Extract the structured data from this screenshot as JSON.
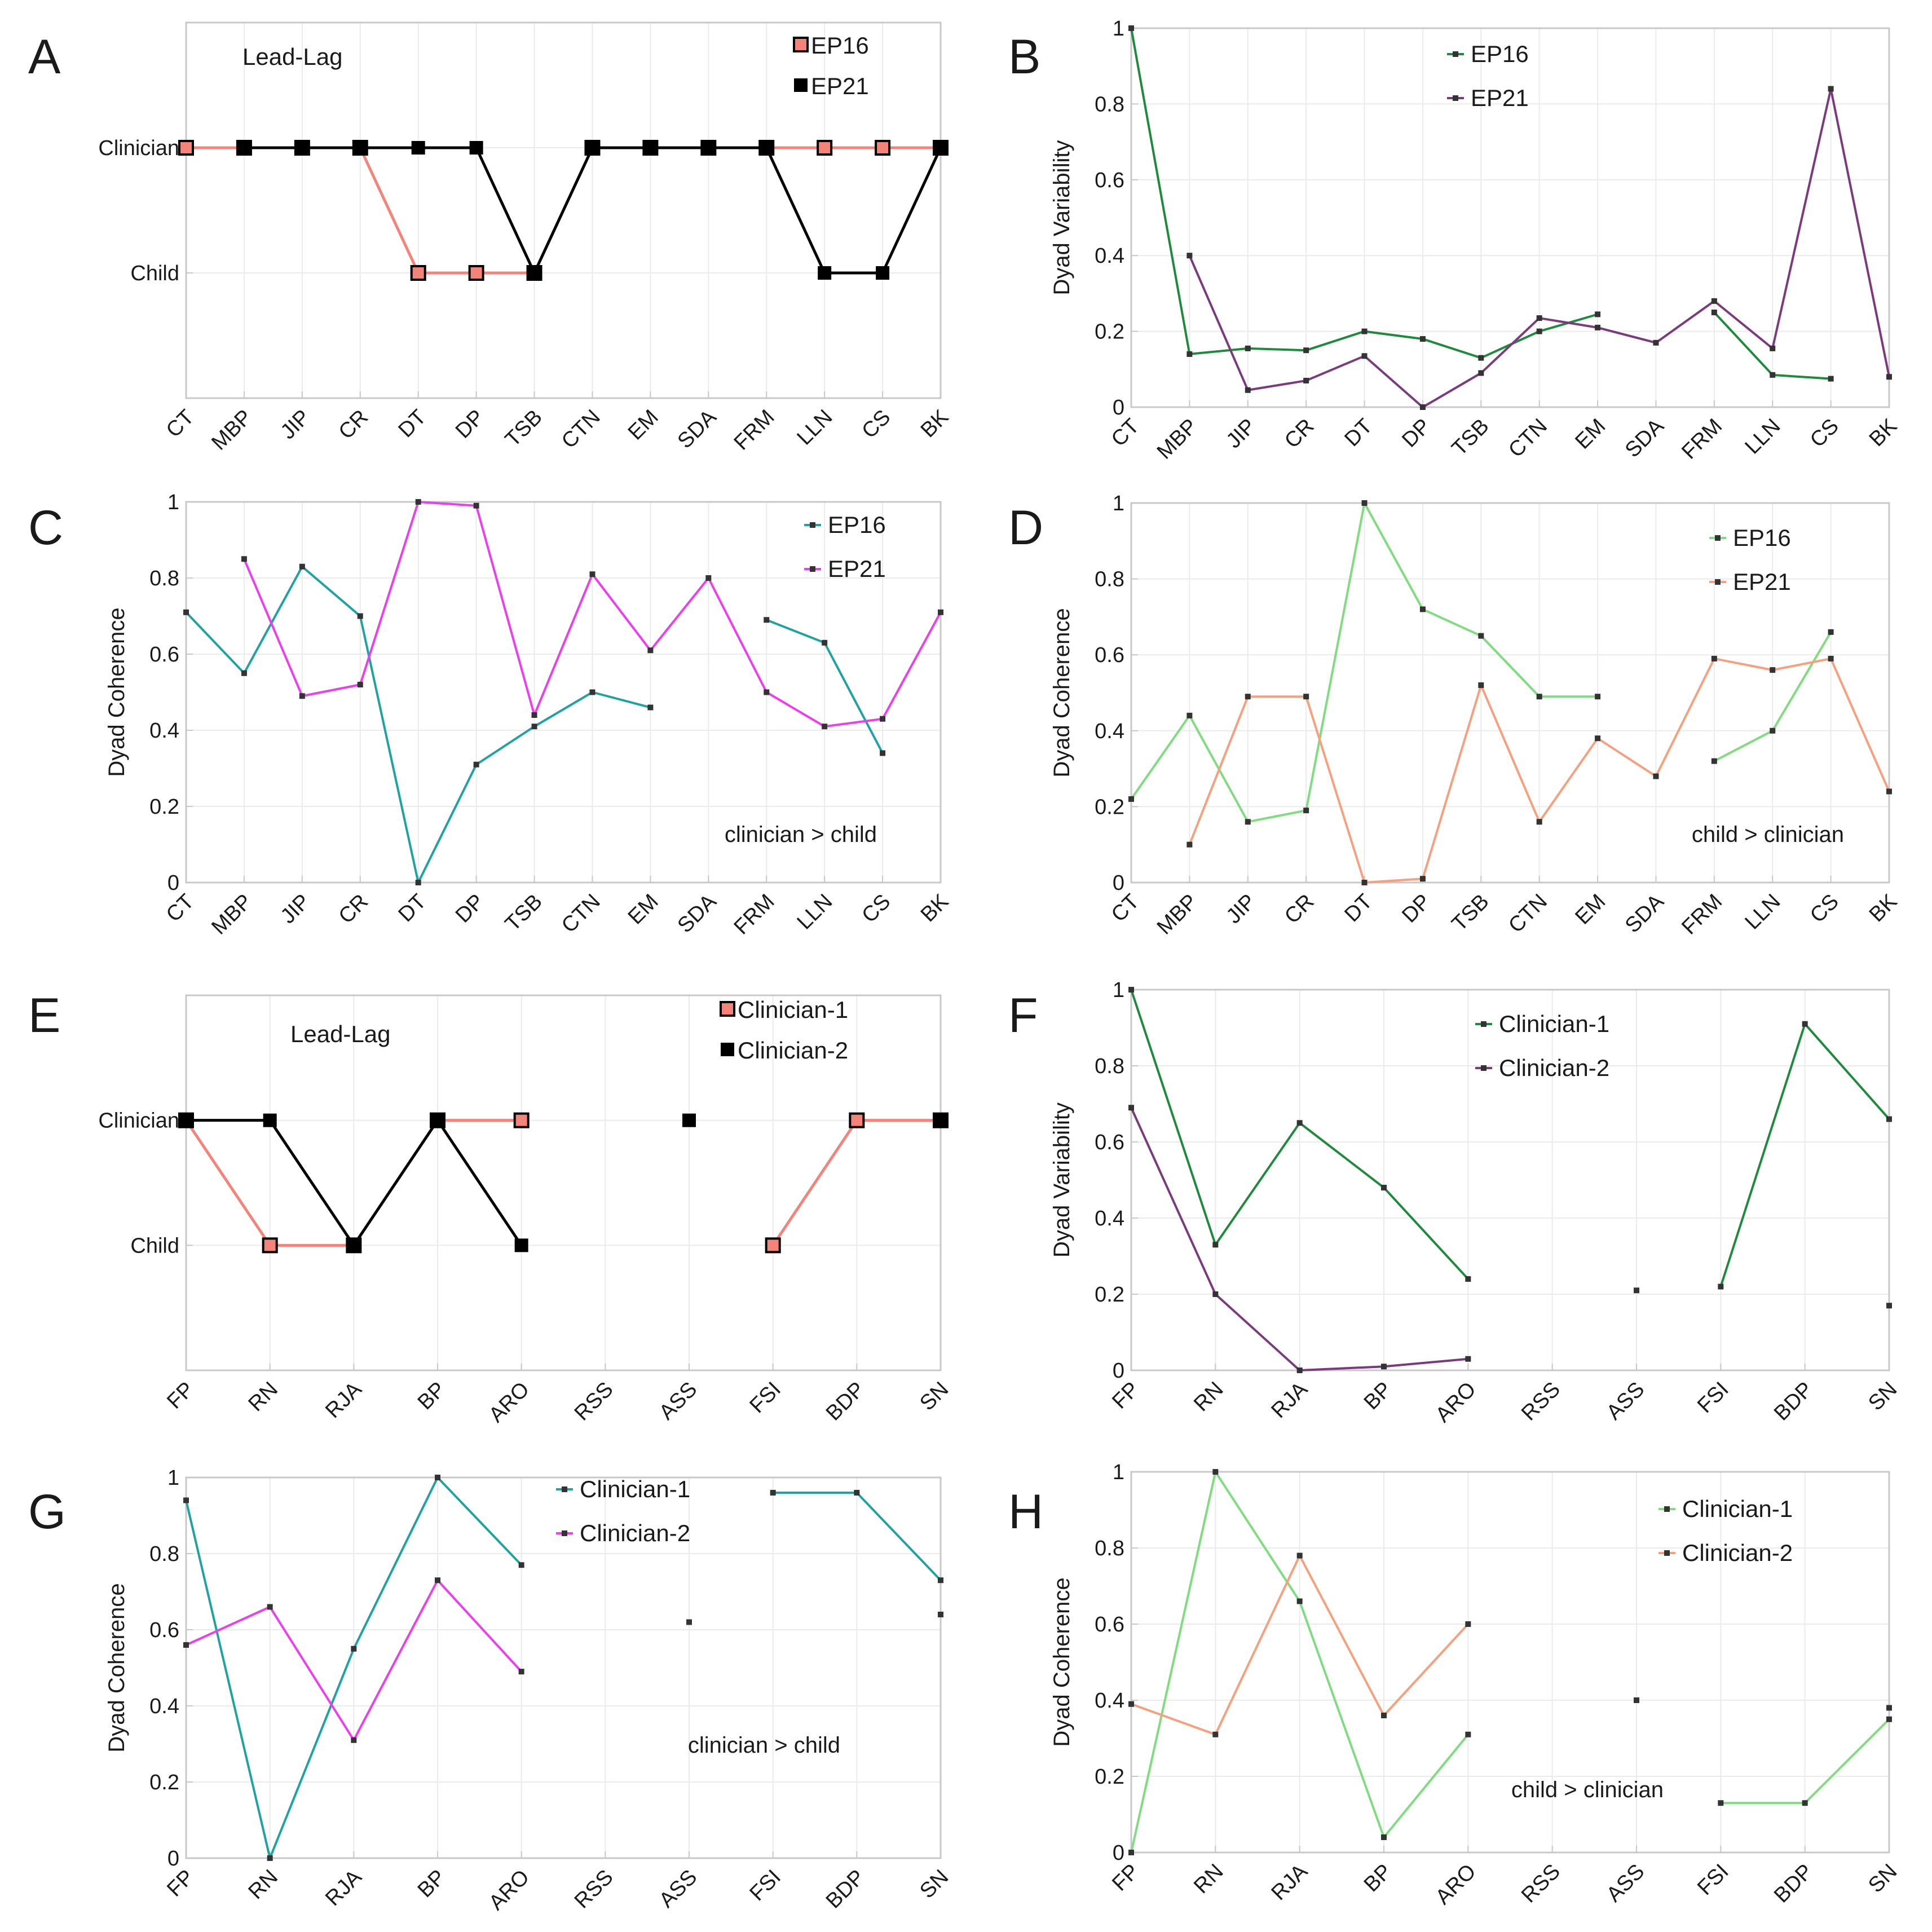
{
  "figure": {
    "panels": [
      "A",
      "B",
      "C",
      "D",
      "E",
      "F",
      "G",
      "H"
    ]
  },
  "chart_data": [
    {
      "panel": "A",
      "type": "line",
      "title": "Lead-Lag",
      "categories": [
        "CT",
        "MBP",
        "JIP",
        "CR",
        "DT",
        "DP",
        "TSB",
        "CTN",
        "EM",
        "SDA",
        "FRM",
        "LLN",
        "CS",
        "BK"
      ],
      "yticks": [
        {
          "value": 1,
          "label": "Clinician"
        },
        {
          "value": 0,
          "label": "Child"
        }
      ],
      "ylim": [
        -1,
        2
      ],
      "ylabel": "",
      "series": [
        {
          "name": "EP16",
          "color": "#f4837a",
          "marker": "square-open",
          "values": [
            1,
            1,
            1,
            1,
            0,
            0,
            0,
            1,
            1,
            1,
            1,
            1,
            1,
            1
          ]
        },
        {
          "name": "EP21",
          "color": "#000000",
          "marker": "square-filled",
          "values": [
            null,
            1,
            1,
            1,
            1,
            1,
            0,
            1,
            1,
            1,
            1,
            0,
            0,
            1
          ]
        }
      ]
    },
    {
      "panel": "B",
      "type": "line",
      "categories": [
        "CT",
        "MBP",
        "JIP",
        "CR",
        "DT",
        "DP",
        "TSB",
        "CTN",
        "EM",
        "SDA",
        "FRM",
        "LLN",
        "CS",
        "BK"
      ],
      "ylabel": "Dyad Variability",
      "ylim": [
        0,
        1
      ],
      "yticks": [
        0,
        0.2,
        0.4,
        0.6,
        0.8,
        1
      ],
      "series": [
        {
          "name": "EP16",
          "color": "#1e8a3c",
          "values": [
            1,
            0.14,
            0.155,
            0.15,
            0.2,
            0.18,
            0.13,
            0.2,
            0.245,
            null,
            0.25,
            0.085,
            0.075,
            null
          ]
        },
        {
          "name": "EP21",
          "color": "#7b3a7e",
          "values": [
            null,
            0.4,
            0.045,
            0.07,
            0.135,
            0.0,
            0.09,
            0.235,
            0.21,
            0.17,
            0.28,
            0.155,
            0.84,
            0.08
          ]
        }
      ]
    },
    {
      "panel": "C",
      "type": "line",
      "annotation": "clinician > child",
      "categories": [
        "CT",
        "MBP",
        "JIP",
        "CR",
        "DT",
        "DP",
        "TSB",
        "CTN",
        "EM",
        "SDA",
        "FRM",
        "LLN",
        "CS",
        "BK"
      ],
      "ylabel": "Dyad Coherence",
      "ylim": [
        0,
        1
      ],
      "yticks": [
        0,
        0.2,
        0.4,
        0.6,
        0.8,
        1
      ],
      "series": [
        {
          "name": "EP16",
          "color": "#1fa2a2",
          "values": [
            0.71,
            0.55,
            0.83,
            0.7,
            0.0,
            0.31,
            0.41,
            0.5,
            0.46,
            null,
            0.69,
            0.63,
            0.34,
            null
          ]
        },
        {
          "name": "EP21",
          "color": "#ee3dee",
          "values": [
            null,
            0.85,
            0.49,
            0.52,
            1.0,
            0.99,
            0.44,
            0.81,
            0.61,
            0.8,
            0.5,
            0.41,
            0.43,
            0.71
          ]
        }
      ]
    },
    {
      "panel": "D",
      "type": "line",
      "annotation": "child > clinician",
      "categories": [
        "CT",
        "MBP",
        "JIP",
        "CR",
        "DT",
        "DP",
        "TSB",
        "CTN",
        "EM",
        "SDA",
        "FRM",
        "LLN",
        "CS",
        "BK"
      ],
      "ylabel": "Dyad Coherence",
      "ylim": [
        0,
        1
      ],
      "yticks": [
        0,
        0.2,
        0.4,
        0.6,
        0.8,
        1
      ],
      "series": [
        {
          "name": "EP16",
          "color": "#7fdc7f",
          "values": [
            0.22,
            0.44,
            0.16,
            0.19,
            1.0,
            0.72,
            0.65,
            0.49,
            0.49,
            null,
            0.32,
            0.4,
            0.66,
            null
          ]
        },
        {
          "name": "EP21",
          "color": "#f7a07d",
          "values": [
            null,
            0.1,
            0.49,
            0.49,
            0.0,
            0.01,
            0.52,
            0.16,
            0.38,
            0.28,
            0.59,
            0.56,
            0.59,
            0.24
          ]
        }
      ]
    },
    {
      "panel": "E",
      "type": "line",
      "title": "Lead-Lag",
      "categories": [
        "FP",
        "RN",
        "RJA",
        "BP",
        "ARO",
        "RSS",
        "ASS",
        "FSI",
        "BDP",
        "SN"
      ],
      "yticks": [
        {
          "value": 1,
          "label": "Clinician"
        },
        {
          "value": 0,
          "label": "Child"
        }
      ],
      "ylim": [
        -1,
        2
      ],
      "ylabel": "",
      "series": [
        {
          "name": "Clinician-1",
          "color": "#f4837a",
          "marker": "square-open",
          "values": [
            1,
            0,
            0,
            1,
            1,
            null,
            null,
            0,
            1,
            1
          ]
        },
        {
          "name": "Clinician-2",
          "color": "#000000",
          "marker": "square-filled",
          "values": [
            1,
            1,
            0,
            1,
            0,
            null,
            1,
            null,
            null,
            1
          ]
        }
      ]
    },
    {
      "panel": "F",
      "type": "line",
      "categories": [
        "FP",
        "RN",
        "RJA",
        "BP",
        "ARO",
        "RSS",
        "ASS",
        "FSI",
        "BDP",
        "SN"
      ],
      "ylabel": "Dyad Variability",
      "ylim": [
        0,
        1
      ],
      "yticks": [
        0,
        0.2,
        0.4,
        0.6,
        0.8,
        1
      ],
      "series": [
        {
          "name": "Clinician-1",
          "color": "#1e8a3c",
          "values": [
            1,
            0.33,
            0.65,
            0.48,
            0.24,
            null,
            null,
            0.22,
            0.91,
            0.66
          ]
        },
        {
          "name": "Clinician-2",
          "color": "#7b3a7e",
          "values": [
            0.69,
            0.2,
            0.0,
            0.01,
            0.03,
            null,
            0.21,
            null,
            null,
            0.17
          ]
        }
      ]
    },
    {
      "panel": "G",
      "type": "line",
      "annotation": "clinician > child",
      "categories": [
        "FP",
        "RN",
        "RJA",
        "BP",
        "ARO",
        "RSS",
        "ASS",
        "FSI",
        "BDP",
        "SN"
      ],
      "ylabel": "Dyad Coherence",
      "ylim": [
        0,
        1
      ],
      "yticks": [
        0,
        0.2,
        0.4,
        0.6,
        0.8,
        1
      ],
      "series": [
        {
          "name": "Clinician-1",
          "color": "#1fa2a2",
          "values": [
            0.94,
            0.0,
            0.55,
            1.0,
            0.77,
            null,
            null,
            0.96,
            0.96,
            0.73
          ]
        },
        {
          "name": "Clinician-2",
          "color": "#ee3dee",
          "values": [
            0.56,
            0.66,
            0.31,
            0.73,
            0.49,
            null,
            0.62,
            null,
            null,
            0.64
          ]
        }
      ]
    },
    {
      "panel": "H",
      "type": "line",
      "annotation": "child > clinician",
      "categories": [
        "FP",
        "RN",
        "RJA",
        "BP",
        "ARO",
        "RSS",
        "ASS",
        "FSI",
        "BDP",
        "SN"
      ],
      "ylabel": "Dyad Coherence",
      "ylim": [
        0,
        1
      ],
      "yticks": [
        0,
        0.2,
        0.4,
        0.6,
        0.8,
        1
      ],
      "series": [
        {
          "name": "Clinician-1",
          "color": "#7fdc7f",
          "values": [
            0.0,
            1.0,
            0.66,
            0.04,
            0.31,
            null,
            null,
            0.13,
            0.13,
            0.35
          ]
        },
        {
          "name": "Clinician-2",
          "color": "#f7a07d",
          "values": [
            0.39,
            0.31,
            0.78,
            0.36,
            0.6,
            null,
            0.4,
            null,
            null,
            0.38
          ]
        }
      ]
    }
  ]
}
